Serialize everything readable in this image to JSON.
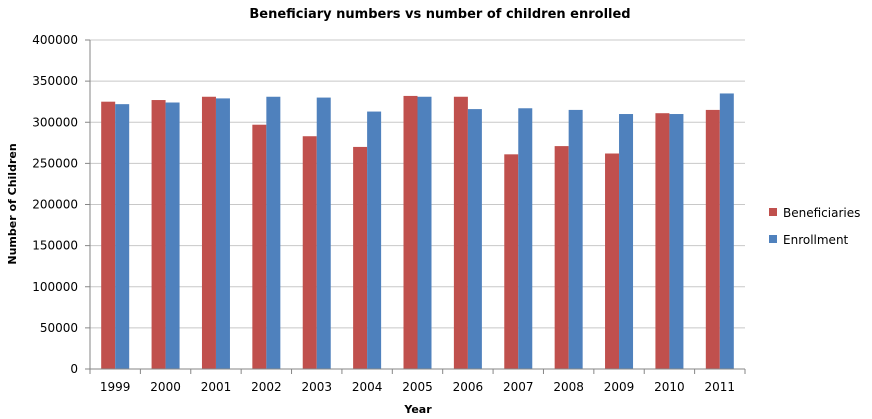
{
  "chart_data": {
    "type": "bar",
    "title": "Beneficiary numbers vs number of children enrolled",
    "xlabel": "Year",
    "ylabel": "Number of Children",
    "categories": [
      "1999",
      "2000",
      "2001",
      "2002",
      "2003",
      "2004",
      "2005",
      "2006",
      "2007",
      "2008",
      "2009",
      "2010",
      "2011"
    ],
    "series": [
      {
        "name": "Beneficiaries",
        "color": "#c0504d",
        "values": [
          325000,
          327000,
          331000,
          297000,
          283000,
          270000,
          332000,
          331000,
          261000,
          271000,
          262000,
          311000,
          315000
        ]
      },
      {
        "name": "Enrollment",
        "color": "#4f81bd",
        "values": [
          322000,
          324000,
          329000,
          331000,
          330000,
          313000,
          331000,
          316000,
          317000,
          315000,
          310000,
          310000,
          335000
        ]
      }
    ],
    "ylim": [
      0,
      400000
    ],
    "yticks": [
      "0",
      "50000",
      "100000",
      "150000",
      "200000",
      "250000",
      "300000",
      "350000",
      "400000"
    ],
    "grid": true,
    "legend_position": "right"
  }
}
